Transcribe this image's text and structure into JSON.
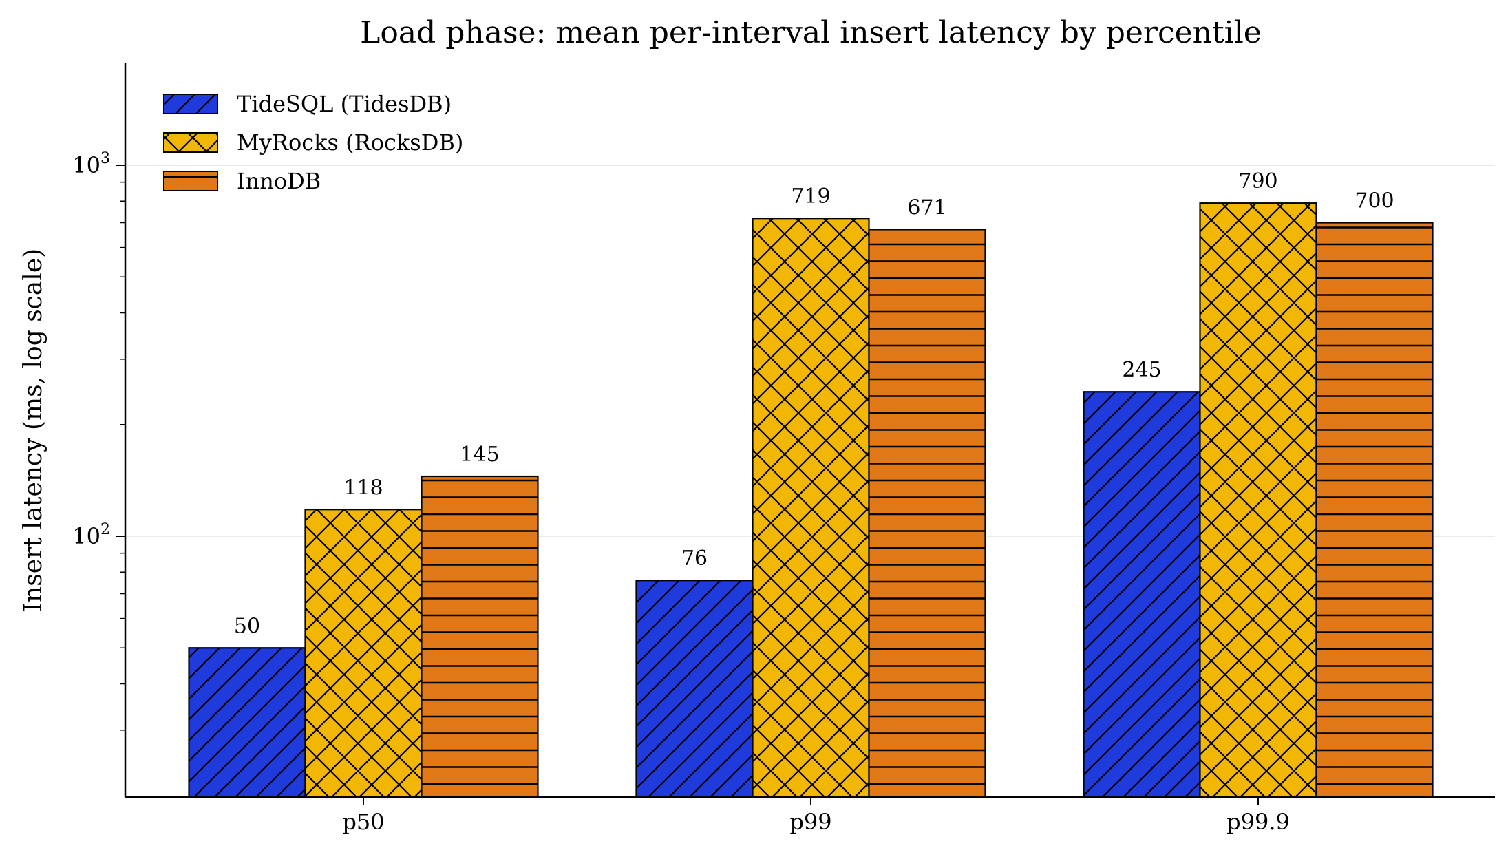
{
  "chart_data": {
    "type": "bar",
    "title": "Load phase: mean per-interval insert latency by percentile",
    "xlabel": "",
    "ylabel": "Insert latency (ms, log scale)",
    "yscale": "log",
    "ylim": [
      30,
      1900
    ],
    "yticks": [
      {
        "value": 100,
        "base": "10",
        "exp": "2"
      },
      {
        "value": 1000,
        "base": "10",
        "exp": "3"
      }
    ],
    "grid": "horizontal-major",
    "legend_position": "top-left",
    "categories": [
      "p50",
      "p99",
      "p99.9"
    ],
    "series": [
      {
        "name": "TideSQL (TidesDB)",
        "values": [
          50,
          76,
          245
        ],
        "color": "#1f3bdb",
        "hatch": "diagonal"
      },
      {
        "name": "MyRocks (RocksDB)",
        "values": [
          118,
          719,
          790
        ],
        "color": "#f2b705",
        "hatch": "crosshatch"
      },
      {
        "name": "InnoDB",
        "values": [
          145,
          671,
          700
        ],
        "color": "#e07818",
        "hatch": "horizontal"
      }
    ],
    "data_labels": [
      [
        "50",
        "76",
        "245"
      ],
      [
        "118",
        "719",
        "790"
      ],
      [
        "145",
        "671",
        "700"
      ]
    ]
  }
}
